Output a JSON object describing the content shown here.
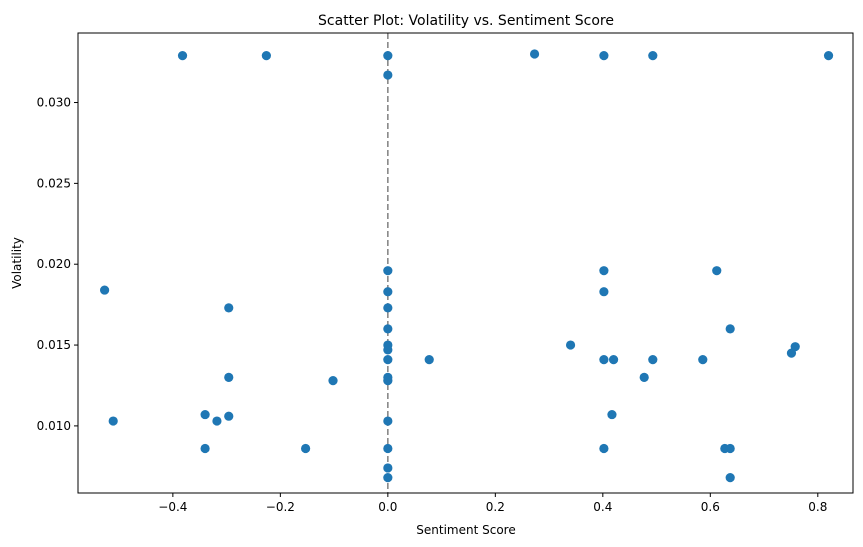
{
  "chart_data": {
    "type": "scatter",
    "title": "Scatter Plot: Volatility vs. Sentiment Score",
    "xlabel": "Sentiment Score",
    "ylabel": "Volatility",
    "xlim": [
      -0.5765,
      0.8655
    ],
    "ylim": [
      0.00585,
      0.0343
    ],
    "xticks": [
      -0.4,
      -0.2,
      0.0,
      0.2,
      0.4,
      0.6,
      0.8
    ],
    "xtick_labels": [
      "−0.4",
      "−0.2",
      "0.0",
      "0.2",
      "0.4",
      "0.6",
      "0.8"
    ],
    "yticks": [
      0.01,
      0.015,
      0.02,
      0.025,
      0.03
    ],
    "ytick_labels": [
      "0.010",
      "0.015",
      "0.020",
      "0.025",
      "0.030"
    ],
    "grid": false,
    "legend": "none",
    "reference_line": {
      "x": 0.0,
      "style": "dashed",
      "color": "#808080"
    },
    "marker_color": "#1f77b4",
    "points": [
      {
        "x": -0.382,
        "y": 0.0329
      },
      {
        "x": -0.226,
        "y": 0.0329
      },
      {
        "x": 0.0,
        "y": 0.0329
      },
      {
        "x": 0.273,
        "y": 0.033
      },
      {
        "x": 0.402,
        "y": 0.0329
      },
      {
        "x": 0.493,
        "y": 0.0329
      },
      {
        "x": 0.82,
        "y": 0.0329
      },
      {
        "x": 0.0,
        "y": 0.0317
      },
      {
        "x": -0.527,
        "y": 0.0184
      },
      {
        "x": -0.296,
        "y": 0.0173
      },
      {
        "x": -0.296,
        "y": 0.013
      },
      {
        "x": -0.102,
        "y": 0.0128
      },
      {
        "x": -0.511,
        "y": 0.0103
      },
      {
        "x": -0.34,
        "y": 0.0107
      },
      {
        "x": -0.318,
        "y": 0.0103
      },
      {
        "x": -0.296,
        "y": 0.0106
      },
      {
        "x": -0.34,
        "y": 0.0086
      },
      {
        "x": -0.153,
        "y": 0.0086
      },
      {
        "x": 0.0,
        "y": 0.0196
      },
      {
        "x": 0.0,
        "y": 0.0183
      },
      {
        "x": 0.0,
        "y": 0.0173
      },
      {
        "x": 0.0,
        "y": 0.016
      },
      {
        "x": 0.0,
        "y": 0.015
      },
      {
        "x": 0.0,
        "y": 0.0147
      },
      {
        "x": 0.0,
        "y": 0.0141
      },
      {
        "x": 0.0,
        "y": 0.013
      },
      {
        "x": 0.0,
        "y": 0.0128
      },
      {
        "x": 0.0,
        "y": 0.0103
      },
      {
        "x": 0.0,
        "y": 0.0086
      },
      {
        "x": 0.0,
        "y": 0.0074
      },
      {
        "x": 0.0,
        "y": 0.0068
      },
      {
        "x": 0.077,
        "y": 0.0141
      },
      {
        "x": 0.34,
        "y": 0.015
      },
      {
        "x": 0.402,
        "y": 0.0196
      },
      {
        "x": 0.402,
        "y": 0.0183
      },
      {
        "x": 0.402,
        "y": 0.0141
      },
      {
        "x": 0.402,
        "y": 0.0086
      },
      {
        "x": 0.42,
        "y": 0.0141
      },
      {
        "x": 0.417,
        "y": 0.0107
      },
      {
        "x": 0.477,
        "y": 0.013
      },
      {
        "x": 0.493,
        "y": 0.0141
      },
      {
        "x": 0.586,
        "y": 0.0141
      },
      {
        "x": 0.612,
        "y": 0.0196
      },
      {
        "x": 0.637,
        "y": 0.016
      },
      {
        "x": 0.627,
        "y": 0.0086
      },
      {
        "x": 0.637,
        "y": 0.0086
      },
      {
        "x": 0.637,
        "y": 0.0068
      },
      {
        "x": 0.751,
        "y": 0.0145
      },
      {
        "x": 0.758,
        "y": 0.0149
      }
    ]
  }
}
